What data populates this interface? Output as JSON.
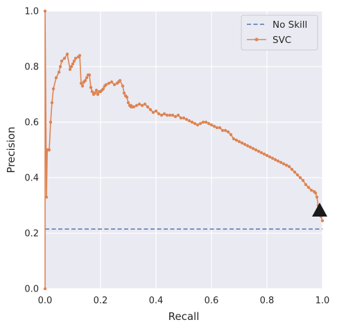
{
  "chart_data": {
    "type": "line",
    "title": "",
    "xlabel": "Recall",
    "ylabel": "Precision",
    "xlim": [
      0.0,
      1.0
    ],
    "ylim": [
      0.0,
      1.0
    ],
    "xticks": [
      "0.0",
      "0.2",
      "0.4",
      "0.6",
      "0.8",
      "1.0"
    ],
    "yticks": [
      "0.0",
      "0.2",
      "0.4",
      "0.6",
      "0.8",
      "1.0"
    ],
    "grid": true,
    "legend_position": "top-right",
    "colors": {
      "background": "#eaeaf2",
      "grid": "#ffffff",
      "no_skill": "#4c72b0",
      "svc": "#dd8452",
      "marker": "#1a1a1a"
    },
    "series": [
      {
        "name": "No Skill",
        "style": "dashed",
        "x": [
          0.0,
          1.0
        ],
        "y": [
          0.215,
          0.215
        ]
      },
      {
        "name": "SVC",
        "style": "solid-with-dots",
        "x": [
          0.0,
          0.0,
          0.005,
          0.008,
          0.01,
          0.012,
          0.015,
          0.02,
          0.025,
          0.03,
          0.04,
          0.05,
          0.055,
          0.06,
          0.07,
          0.08,
          0.09,
          0.095,
          0.095,
          0.1,
          0.105,
          0.11,
          0.12,
          0.125,
          0.13,
          0.135,
          0.14,
          0.14,
          0.145,
          0.15,
          0.155,
          0.16,
          0.165,
          0.165,
          0.17,
          0.175,
          0.18,
          0.185,
          0.19,
          0.195,
          0.2,
          0.205,
          0.21,
          0.215,
          0.22,
          0.23,
          0.24,
          0.25,
          0.26,
          0.265,
          0.27,
          0.28,
          0.285,
          0.29,
          0.295,
          0.3,
          0.305,
          0.31,
          0.31,
          0.315,
          0.32,
          0.33,
          0.34,
          0.35,
          0.36,
          0.37,
          0.38,
          0.39,
          0.4,
          0.41,
          0.42,
          0.43,
          0.44,
          0.45,
          0.46,
          0.47,
          0.48,
          0.49,
          0.5,
          0.51,
          0.52,
          0.53,
          0.54,
          0.55,
          0.56,
          0.57,
          0.58,
          0.59,
          0.6,
          0.61,
          0.62,
          0.63,
          0.64,
          0.65,
          0.66,
          0.67,
          0.68,
          0.69,
          0.7,
          0.71,
          0.72,
          0.73,
          0.74,
          0.75,
          0.76,
          0.77,
          0.78,
          0.79,
          0.8,
          0.81,
          0.82,
          0.83,
          0.84,
          0.85,
          0.86,
          0.87,
          0.88,
          0.89,
          0.9,
          0.91,
          0.92,
          0.93,
          0.94,
          0.95,
          0.96,
          0.97,
          0.975,
          0.98,
          0.985,
          0.99,
          0.995,
          1.0
        ],
        "y": [
          0.0,
          1.0,
          0.33,
          0.5,
          0.5,
          0.5,
          0.5,
          0.6,
          0.67,
          0.72,
          0.76,
          0.78,
          0.8,
          0.82,
          0.83,
          0.845,
          0.79,
          0.8,
          0.8,
          0.81,
          0.82,
          0.83,
          0.835,
          0.84,
          0.74,
          0.73,
          0.745,
          0.745,
          0.75,
          0.76,
          0.77,
          0.77,
          0.725,
          0.725,
          0.71,
          0.7,
          0.705,
          0.715,
          0.7,
          0.71,
          0.71,
          0.715,
          0.72,
          0.73,
          0.735,
          0.74,
          0.745,
          0.735,
          0.74,
          0.745,
          0.75,
          0.73,
          0.705,
          0.695,
          0.69,
          0.67,
          0.66,
          0.66,
          0.655,
          0.655,
          0.655,
          0.66,
          0.665,
          0.66,
          0.665,
          0.655,
          0.645,
          0.635,
          0.64,
          0.63,
          0.625,
          0.63,
          0.625,
          0.625,
          0.625,
          0.62,
          0.625,
          0.615,
          0.615,
          0.61,
          0.605,
          0.6,
          0.595,
          0.59,
          0.595,
          0.6,
          0.6,
          0.595,
          0.59,
          0.585,
          0.58,
          0.58,
          0.57,
          0.57,
          0.565,
          0.555,
          0.54,
          0.535,
          0.53,
          0.525,
          0.52,
          0.515,
          0.51,
          0.505,
          0.5,
          0.495,
          0.49,
          0.485,
          0.48,
          0.475,
          0.47,
          0.465,
          0.46,
          0.455,
          0.45,
          0.445,
          0.44,
          0.43,
          0.42,
          0.41,
          0.4,
          0.39,
          0.375,
          0.365,
          0.355,
          0.35,
          0.345,
          0.33,
          0.3,
          0.28,
          0.26,
          0.245
        ]
      }
    ],
    "annotation": {
      "marker": "triangle",
      "x": 0.99,
      "y": 0.28
    }
  }
}
